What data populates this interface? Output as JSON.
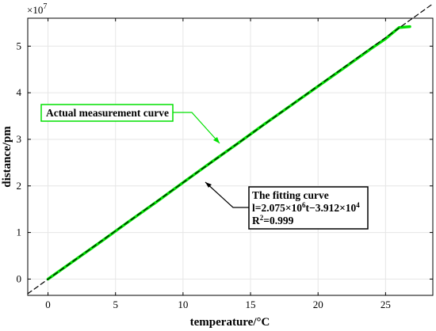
{
  "chart_data": {
    "type": "line",
    "xlabel": "temperature/°C",
    "ylabel": "distance/pm",
    "y_multiplier": "×10",
    "y_multiplier_exp": "7",
    "xlim": [
      -1.5,
      28.5
    ],
    "ylim": [
      -0.35,
      5.6
    ],
    "x_ticks": [
      0,
      5,
      10,
      15,
      20,
      25
    ],
    "y_ticks": [
      0,
      1,
      2,
      3,
      4,
      5
    ],
    "y_scale_factor": 10000000,
    "grid": true,
    "series": [
      {
        "name": "Actual measurement curve",
        "style": "solid",
        "color": "#00e000",
        "x": [
          0,
          2,
          4,
          6,
          8,
          10,
          12,
          14,
          16,
          18,
          20,
          22,
          24,
          25,
          26,
          26.8
        ],
        "y": [
          0.0,
          0.41,
          0.82,
          1.24,
          1.65,
          2.07,
          2.49,
          2.9,
          3.32,
          3.73,
          4.14,
          4.55,
          4.96,
          5.16,
          5.4,
          5.42
        ]
      },
      {
        "name": "The fitting curve",
        "style": "dashed",
        "color": "#000000",
        "x": [
          -1.5,
          28.5
        ],
        "y": [
          -0.315,
          5.91
        ]
      }
    ],
    "annotations": {
      "measurement_label": "Actual measurement curve",
      "fit_title": "The fitting curve",
      "fit_equation_parts": [
        "l=2.075×10",
        "6",
        "t−3.912×10",
        "4"
      ],
      "fit_r2_parts": [
        "R",
        "2",
        "=0.999"
      ]
    }
  }
}
